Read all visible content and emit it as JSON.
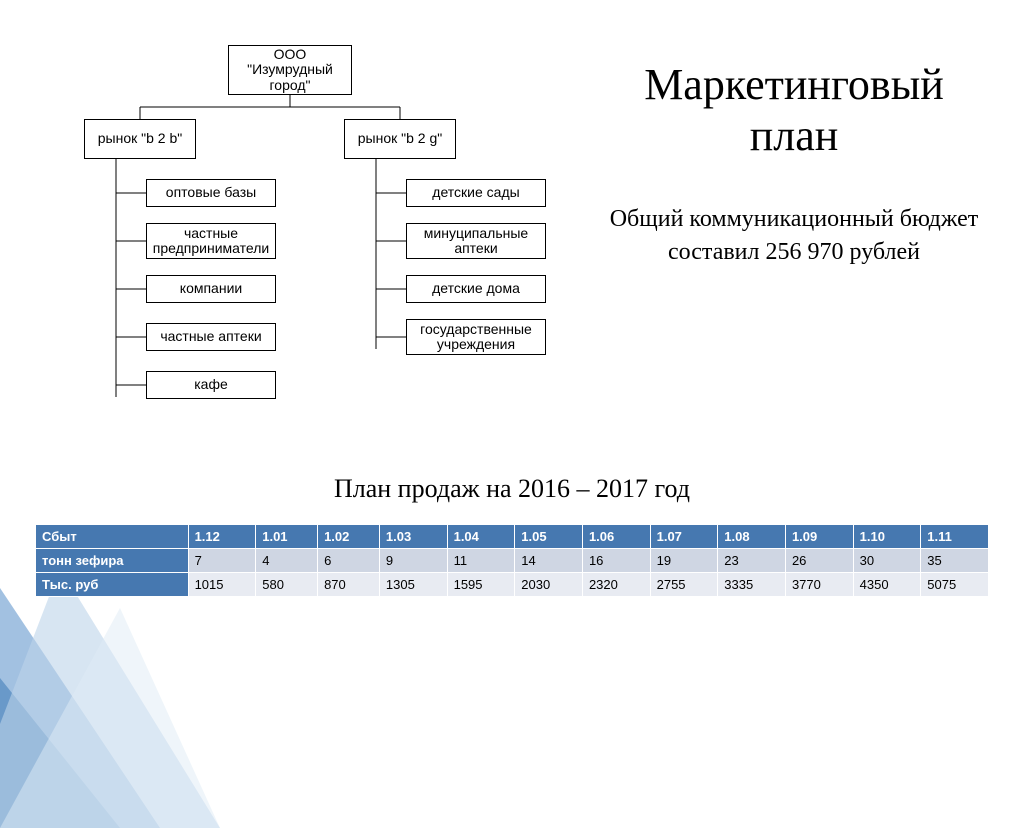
{
  "title": "Маркетинговый план",
  "subtitle": "Общий коммуникационный бюджет составил 256 970 рублей",
  "orgchart": {
    "root": "ООО \"Изумрудный город\"",
    "branches": [
      {
        "label": "рынок \"b 2 b\"",
        "items": [
          "оптовые базы",
          "частные предприниматели",
          "компании",
          "частные аптеки",
          "кафе"
        ]
      },
      {
        "label": "рынок \"b 2 g\"",
        "items": [
          "детские сады",
          "минуципальные аптеки",
          "детские дома",
          "государственные учреждения"
        ]
      }
    ],
    "box_border": "#000000",
    "box_bg": "#ffffff",
    "font_family": "Arial",
    "font_size_pt": 11
  },
  "sales_caption": "План продаж на  2016 – 2017 год",
  "sales_table": {
    "header_bg": "#4678b0",
    "header_fg": "#ffffff",
    "row_alt_bg": [
      "#cfd6e3",
      "#e8ebf2"
    ],
    "row_label_bg": "#4678b0",
    "row_label_fg": "#ffffff",
    "col_header": "Сбыт",
    "months": [
      "1.12",
      "1.01",
      "1.02",
      "1.03",
      "1.04",
      "1.05",
      "1.06",
      "1.07",
      "1.08",
      "1.09",
      "1.10",
      "1.11"
    ],
    "rows": [
      {
        "label": "тонн зефира",
        "values": [
          "7",
          "4",
          "6",
          "9",
          "11",
          "14",
          "16",
          "19",
          "23",
          "26",
          "30",
          "35"
        ]
      },
      {
        "label": "Тыс. руб",
        "values": [
          "1015",
          "580",
          "870",
          "1305",
          "1595",
          "2030",
          "2320",
          "2755",
          "3335",
          "3770",
          "4350",
          "5075"
        ]
      }
    ]
  },
  "deco_colors": [
    "#2e6aa6",
    "#7aa7d4",
    "#bcd3ea",
    "#e0ebf5"
  ]
}
